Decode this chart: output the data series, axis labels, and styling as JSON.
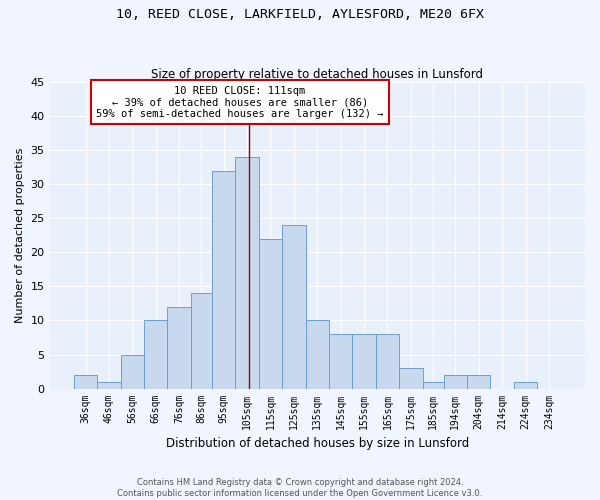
{
  "title": "10, REED CLOSE, LARKFIELD, AYLESFORD, ME20 6FX",
  "subtitle": "Size of property relative to detached houses in Lunsford",
  "xlabel": "Distribution of detached houses by size in Lunsford",
  "ylabel": "Number of detached properties",
  "bar_color": "#c8d9ed",
  "bar_edge_color": "#6a9fd8",
  "bg_color": "#e8f0fb",
  "grid_color": "#ffffff",
  "categories": [
    "36sqm",
    "46sqm",
    "56sqm",
    "66sqm",
    "76sqm",
    "86sqm",
    "95sqm",
    "105sqm",
    "115sqm",
    "125sqm",
    "135sqm",
    "145sqm",
    "155sqm",
    "165sqm",
    "175sqm",
    "185sqm",
    "194sqm",
    "204sqm",
    "214sqm",
    "224sqm",
    "234sqm"
  ],
  "values": [
    2,
    1,
    5,
    10,
    12,
    14,
    32,
    34,
    22,
    24,
    10,
    8,
    8,
    8,
    3,
    1,
    2,
    2,
    0,
    1,
    0
  ],
  "vline_x": 111,
  "bin_edges": [
    36,
    46,
    56,
    66,
    76,
    86,
    95,
    105,
    115,
    125,
    135,
    145,
    155,
    165,
    175,
    185,
    194,
    204,
    214,
    224,
    234,
    244
  ],
  "annotation_text": "10 REED CLOSE: 111sqm\n← 39% of detached houses are smaller (86)\n59% of semi-detached houses are larger (132) →",
  "annotation_box_color": "#ffffff",
  "annotation_box_edge": "#cc0000",
  "vline_color": "#990000",
  "ylim": [
    0,
    45
  ],
  "yticks": [
    0,
    5,
    10,
    15,
    20,
    25,
    30,
    35,
    40,
    45
  ],
  "footer1": "Contains HM Land Registry data © Crown copyright and database right 2024.",
  "footer2": "Contains public sector information licensed under the Open Government Licence v3.0.",
  "fig_width": 6.0,
  "fig_height": 5.0,
  "dpi": 100
}
